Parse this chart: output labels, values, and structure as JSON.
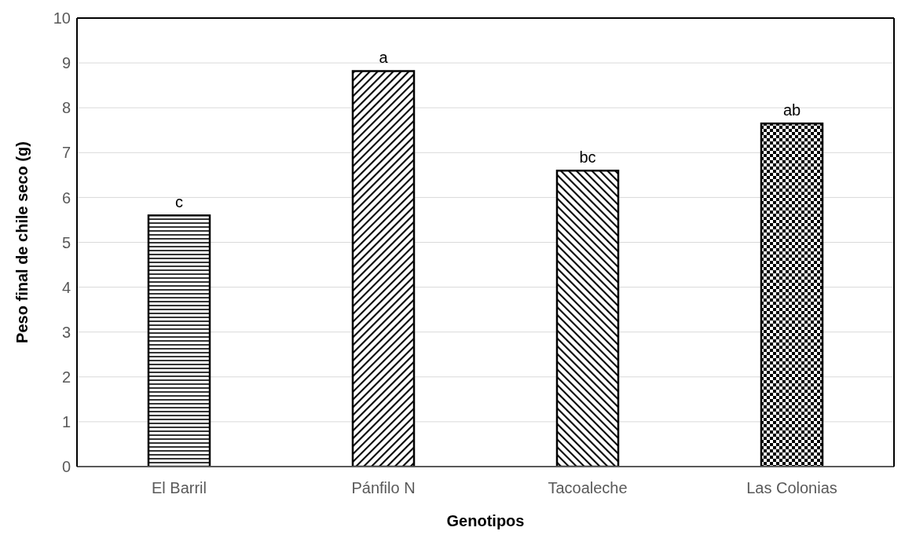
{
  "chart_data": {
    "type": "bar",
    "xlabel": "Genotipos",
    "ylabel": "Peso final de chile seco (g)",
    "categories": [
      "El Barril",
      "Pánfilo N",
      "Tacoaleche",
      "Las Colonias"
    ],
    "values": [
      5.6,
      8.82,
      6.6,
      7.65
    ],
    "color": "#000000",
    "ylim": [
      0,
      10
    ],
    "yticks": [
      0,
      1,
      2,
      3,
      4,
      5,
      6,
      7,
      8,
      9,
      10
    ],
    "grid": "y",
    "annotations": [
      {
        "text": "c",
        "x": "El Barril",
        "y": 5.6
      },
      {
        "text": "a",
        "x": "Pánfilo N",
        "y": 8.82
      },
      {
        "text": "bc",
        "x": "Tacoaleche",
        "y": 6.6
      },
      {
        "text": "ab",
        "x": "Las Colonias",
        "y": 7.65
      }
    ]
  }
}
